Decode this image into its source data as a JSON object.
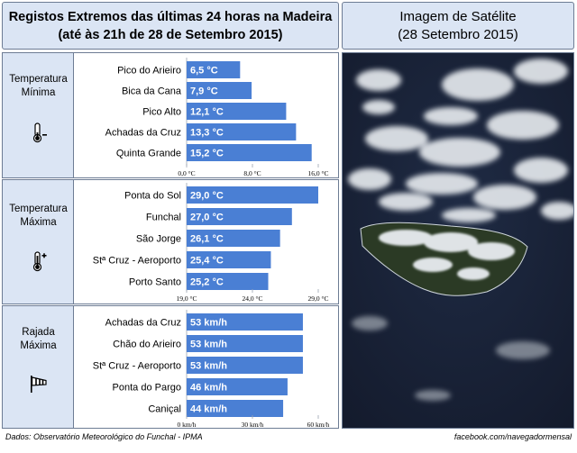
{
  "header": {
    "title_line1": "Registos Extremos das últimas 24 horas na Madeira",
    "title_line2": "(até às 21h de 28 de Setembro 2015)",
    "satellite_line1": "Imagem de Satélite",
    "satellite_line2": "(28 Setembro 2015)"
  },
  "colors": {
    "bar": "#4a7fd4",
    "panel_bg": "#dbe5f4",
    "border": "#6d7c94"
  },
  "chart_data": [
    {
      "type": "bar",
      "category_title": "Temperatura\nMínima",
      "icon": "thermometer-minus-icon",
      "categories": [
        "Pico do Arieiro",
        "Bica da Cana",
        "Pico Alto",
        "Achadas da Cruz",
        "Quinta Grande"
      ],
      "values": [
        6.5,
        7.9,
        12.1,
        13.3,
        15.2
      ],
      "value_labels": [
        "6,5 °C",
        "7,9 °C",
        "12,1 °C",
        "13,3 °C",
        "15,2 °C"
      ],
      "xlim": [
        0,
        16
      ],
      "ticks": [
        0,
        8,
        16
      ],
      "tick_labels": [
        "0,0 °C",
        "8,0 °C",
        "16,0 °C"
      ],
      "orientation": "horizontal"
    },
    {
      "type": "bar",
      "category_title": "Temperatura\nMáxima",
      "icon": "thermometer-plus-icon",
      "categories": [
        "Ponta do Sol",
        "Funchal",
        "São Jorge",
        "Stª Cruz - Aeroporto",
        "Porto Santo"
      ],
      "values": [
        29.0,
        27.0,
        26.1,
        25.4,
        25.2
      ],
      "value_labels": [
        "29,0 °C",
        "27,0 °C",
        "26,1 °C",
        "25,4 °C",
        "25,2 °C"
      ],
      "xlim": [
        19,
        29
      ],
      "ticks": [
        19,
        24,
        29
      ],
      "tick_labels": [
        "19,0 °C",
        "24,0 °C",
        "29,0 °C"
      ],
      "orientation": "horizontal"
    },
    {
      "type": "bar",
      "category_title": "Rajada\nMáxima",
      "icon": "windsock-icon",
      "categories": [
        "Achadas da Cruz",
        "Chão do Arieiro",
        "Stª Cruz - Aeroporto",
        "Ponta do Pargo",
        "Caniçal"
      ],
      "values": [
        53,
        53,
        53,
        46,
        44
      ],
      "value_labels": [
        "53 km/h",
        "53 km/h",
        "53 km/h",
        "46 km/h",
        "44 km/h"
      ],
      "xlim": [
        0,
        60
      ],
      "ticks": [
        0,
        30,
        60
      ],
      "tick_labels": [
        "0 km/h",
        "30 km/h",
        "60 km/h"
      ],
      "orientation": "horizontal"
    }
  ],
  "footer": {
    "source": "Dados: Observatório Meteorológico do Funchal - IPMA",
    "credit": "facebook.com/navegadormensal"
  }
}
